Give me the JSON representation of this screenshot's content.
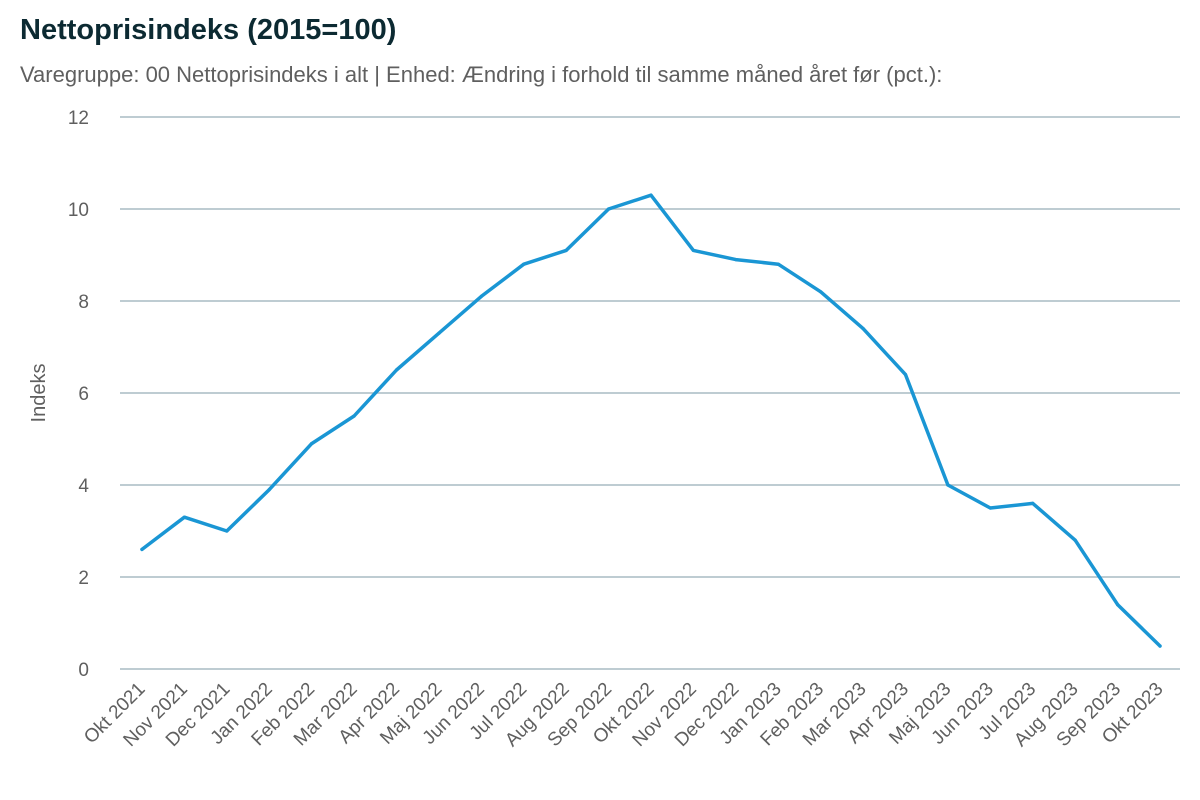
{
  "chart_data": {
    "type": "line",
    "title": "Nettoprisindeks (2015=100)",
    "subtitle": "Varegruppe: 00 Nettoprisindeks i alt | Enhed: Ændring i forhold til samme måned året før (pct.):",
    "xlabel": "",
    "ylabel": "Indeks",
    "ylim": [
      0,
      12
    ],
    "yticks": [
      0,
      2,
      4,
      6,
      8,
      10,
      12
    ],
    "grid": true,
    "categories": [
      "Okt 2021",
      "Nov 2021",
      "Dec 2021",
      "Jan 2022",
      "Feb 2022",
      "Mar 2022",
      "Apr 2022",
      "Maj 2022",
      "Jun 2022",
      "Jul 2022",
      "Aug 2022",
      "Sep 2022",
      "Okt 2022",
      "Nov 2022",
      "Dec 2022",
      "Jan 2023",
      "Feb 2023",
      "Mar 2023",
      "Apr 2023",
      "Maj 2023",
      "Jun 2023",
      "Jul 2023",
      "Aug 2023",
      "Sep 2023",
      "Okt 2023"
    ],
    "series": [
      {
        "color": "#1a96d4",
        "values": [
          2.6,
          3.3,
          3.0,
          3.9,
          4.9,
          5.5,
          6.5,
          7.3,
          8.1,
          8.8,
          9.1,
          10.0,
          10.3,
          9.1,
          8.9,
          8.8,
          8.2,
          7.4,
          6.4,
          4.0,
          3.5,
          3.6,
          2.8,
          1.4,
          0.5
        ]
      }
    ]
  }
}
